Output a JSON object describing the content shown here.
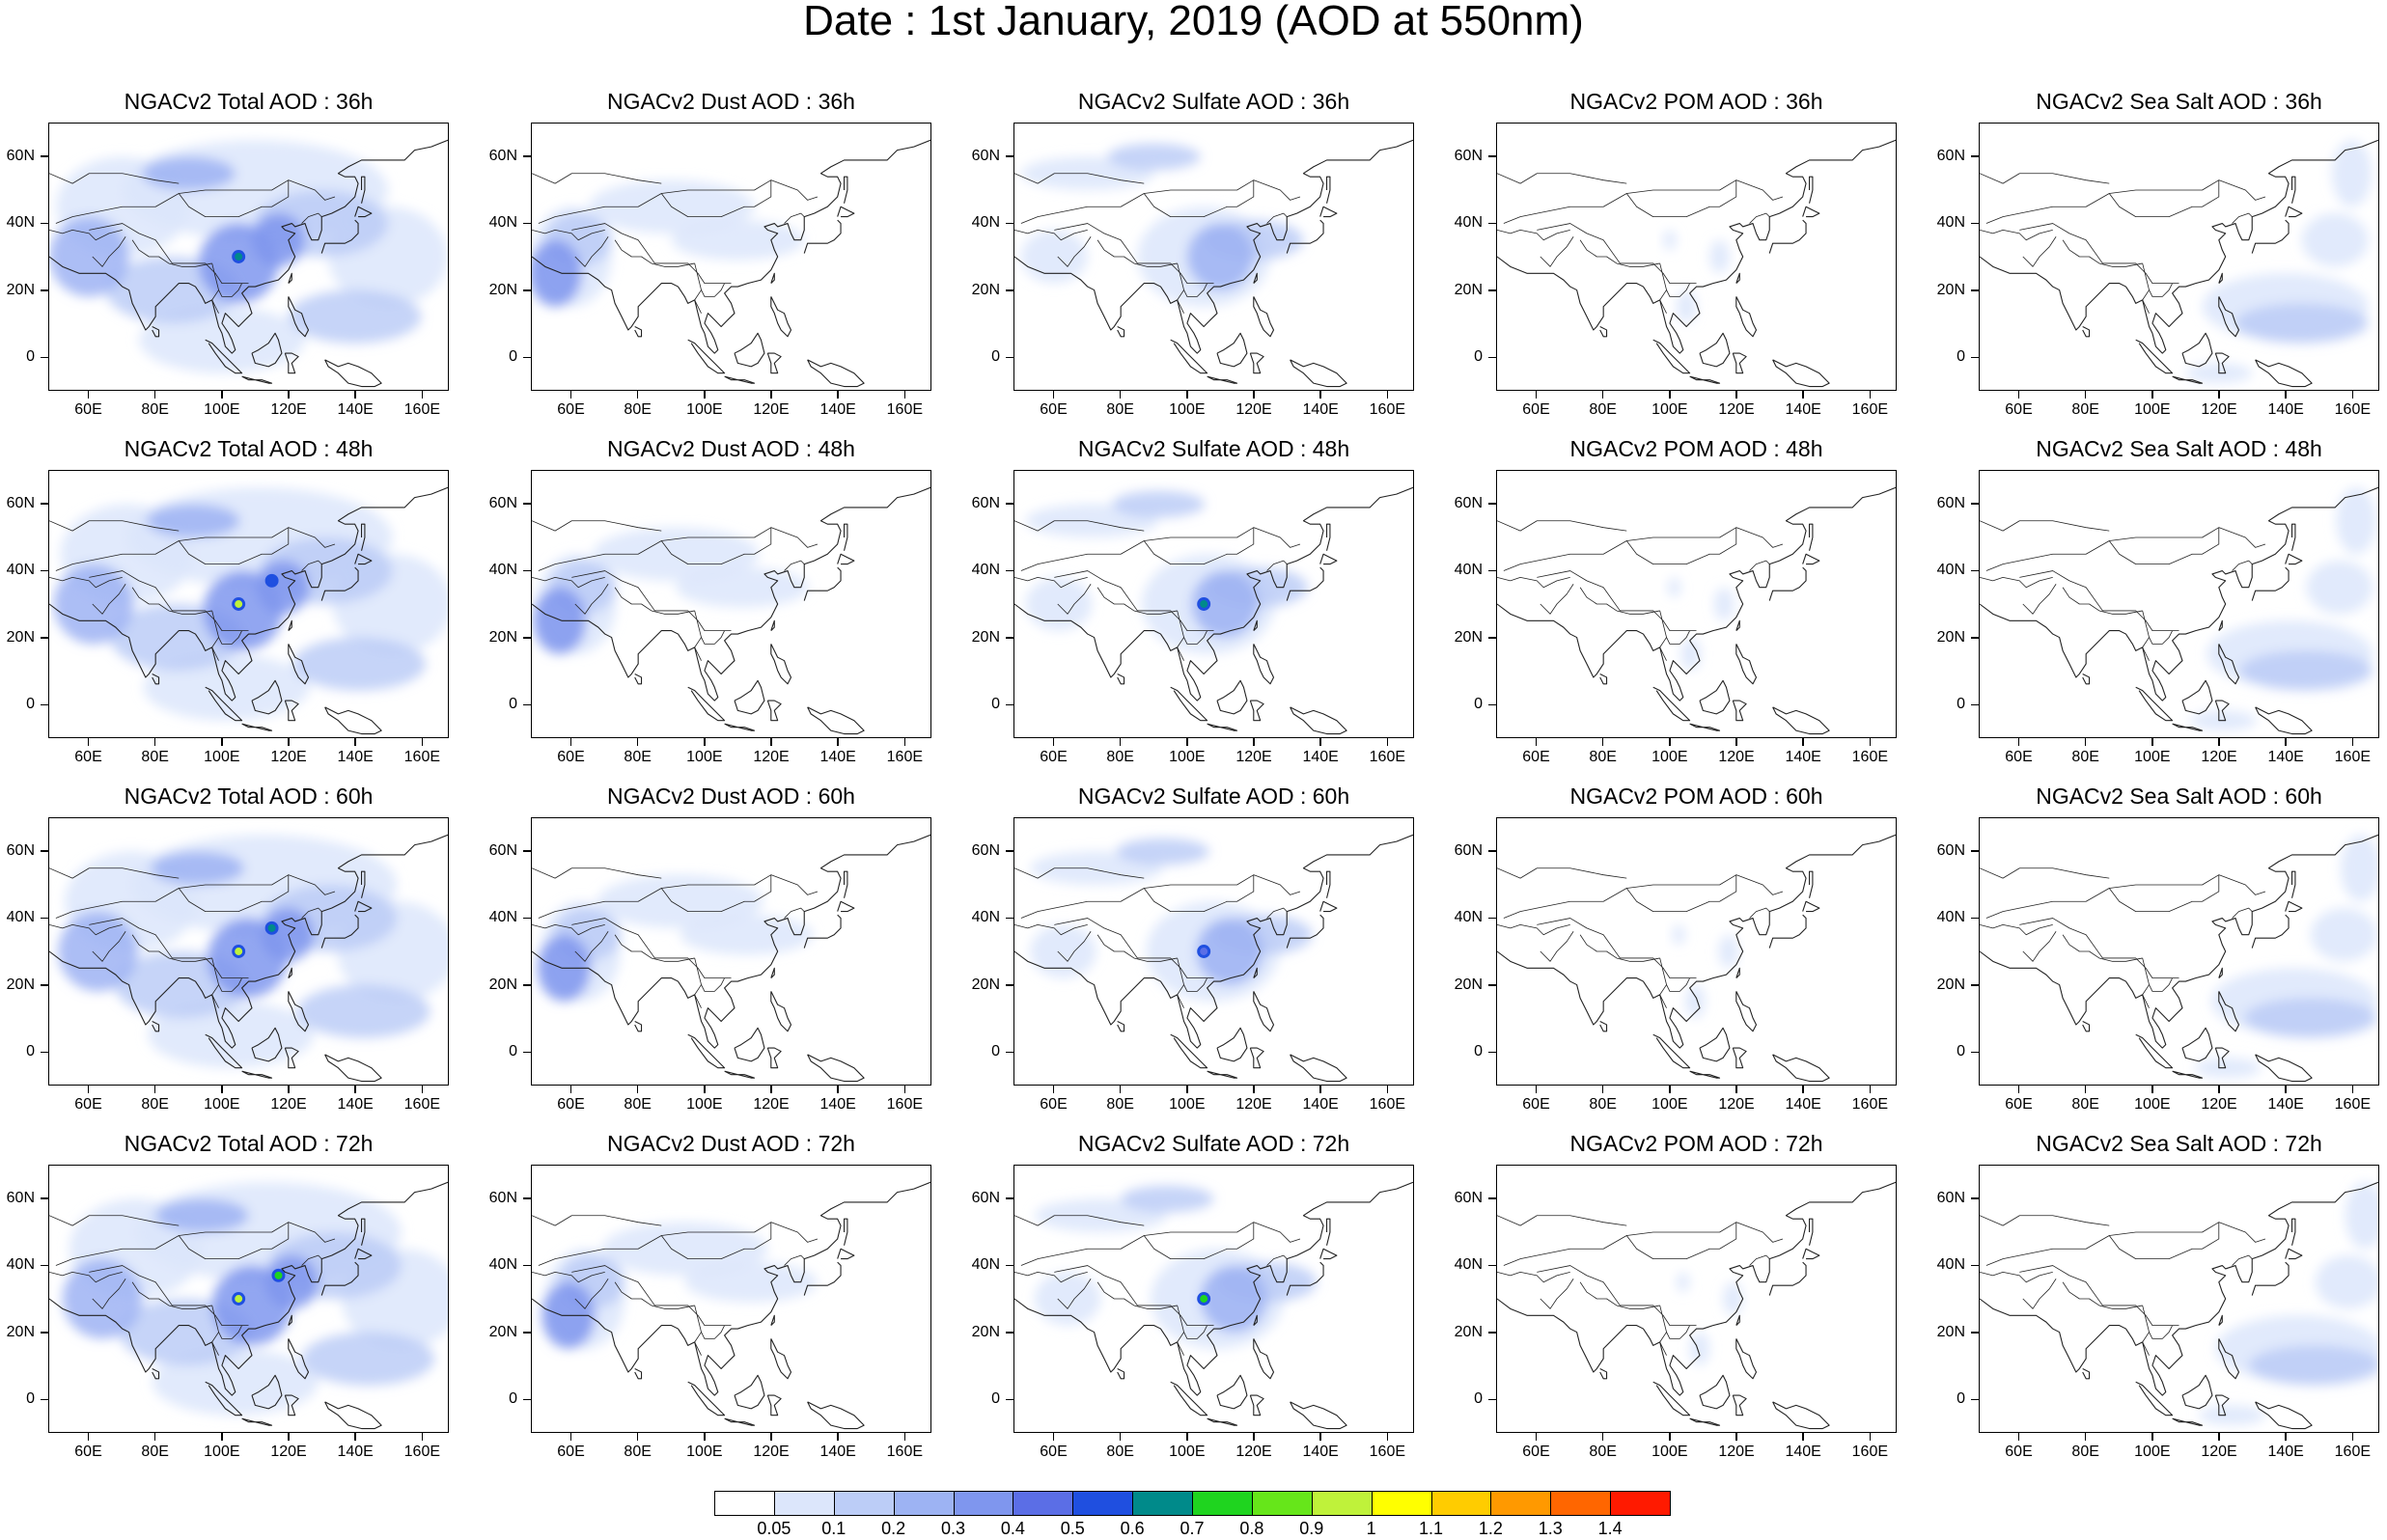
{
  "title": "Date : 1st January, 2019 (AOD at 550nm)",
  "map": {
    "lon_range": [
      48,
      168
    ],
    "lat_range": [
      -10,
      70
    ],
    "lon_ticks": [
      "60E",
      "80E",
      "100E",
      "120E",
      "140E",
      "160E"
    ],
    "lon_tick_values": [
      60,
      80,
      100,
      120,
      140,
      160
    ],
    "lat_ticks": [
      "60N",
      "40N",
      "20N",
      "0"
    ],
    "lat_tick_values": [
      60,
      40,
      20,
      0
    ]
  },
  "panels": [
    {
      "title": "NGACv2 Total AOD : 36h",
      "species": "total",
      "hour": 36
    },
    {
      "title": "NGACv2 Dust AOD : 36h",
      "species": "dust",
      "hour": 36
    },
    {
      "title": "NGACv2 Sulfate AOD : 36h",
      "species": "sulfate",
      "hour": 36
    },
    {
      "title": "NGACv2 POM AOD : 36h",
      "species": "pom",
      "hour": 36
    },
    {
      "title": "NGACv2 Sea Salt AOD : 36h",
      "species": "seasalt",
      "hour": 36
    },
    {
      "title": "NGACv2 Total AOD : 48h",
      "species": "total",
      "hour": 48
    },
    {
      "title": "NGACv2 Dust AOD : 48h",
      "species": "dust",
      "hour": 48
    },
    {
      "title": "NGACv2 Sulfate AOD : 48h",
      "species": "sulfate",
      "hour": 48
    },
    {
      "title": "NGACv2 POM AOD : 48h",
      "species": "pom",
      "hour": 48
    },
    {
      "title": "NGACv2 Sea Salt AOD : 48h",
      "species": "seasalt",
      "hour": 48
    },
    {
      "title": "NGACv2 Total AOD : 60h",
      "species": "total",
      "hour": 60
    },
    {
      "title": "NGACv2 Dust AOD : 60h",
      "species": "dust",
      "hour": 60
    },
    {
      "title": "NGACv2 Sulfate AOD : 60h",
      "species": "sulfate",
      "hour": 60
    },
    {
      "title": "NGACv2 POM AOD : 60h",
      "species": "pom",
      "hour": 60
    },
    {
      "title": "NGACv2 Sea Salt AOD : 60h",
      "species": "seasalt",
      "hour": 60
    },
    {
      "title": "NGACv2 Total AOD : 72h",
      "species": "total",
      "hour": 72
    },
    {
      "title": "NGACv2 Dust AOD : 72h",
      "species": "dust",
      "hour": 72
    },
    {
      "title": "NGACv2 Sulfate AOD : 72h",
      "species": "sulfate",
      "hour": 72
    },
    {
      "title": "NGACv2 POM AOD : 72h",
      "species": "pom",
      "hour": 72
    },
    {
      "title": "NGACv2 Sea Salt  AOD : 72h",
      "species": "seasalt",
      "hour": 72
    }
  ],
  "colorbar": {
    "labels": [
      "0.05",
      "0.1",
      "0.2",
      "0.3",
      "0.4",
      "0.5",
      "0.6",
      "0.7",
      "0.8",
      "0.9",
      "1",
      "1.1",
      "1.2",
      "1.3",
      "1.4"
    ],
    "colors": [
      "#ffffff",
      "#dce6fb",
      "#bccdf7",
      "#9db3f3",
      "#7f96ee",
      "#5b6ee6",
      "#1f4fe0",
      "#008a8a",
      "#1fd41f",
      "#66e61a",
      "#bff23a",
      "#ffff00",
      "#ffcc00",
      "#ff9900",
      "#ff6600",
      "#ff1a00"
    ]
  },
  "plumes": {
    "total": [
      {
        "lon": 105,
        "lat": 28,
        "rx": 12,
        "ry": 12,
        "level": 4
      },
      {
        "lon": 117,
        "lat": 35,
        "rx": 8,
        "ry": 8,
        "level": 4
      },
      {
        "lon": 90,
        "lat": 55,
        "rx": 14,
        "ry": 5,
        "level": 3
      },
      {
        "lon": 60,
        "lat": 30,
        "rx": 12,
        "ry": 12,
        "level": 3
      },
      {
        "lon": 140,
        "lat": 12,
        "rx": 20,
        "ry": 8,
        "level": 2
      },
      {
        "lon": 130,
        "lat": 40,
        "rx": 20,
        "ry": 10,
        "level": 2
      },
      {
        "lon": 85,
        "lat": 20,
        "rx": 20,
        "ry": 10,
        "level": 2
      },
      {
        "lon": 110,
        "lat": 50,
        "rx": 40,
        "ry": 15,
        "level": 1
      },
      {
        "lon": 70,
        "lat": 45,
        "rx": 20,
        "ry": 15,
        "level": 1
      },
      {
        "lon": 150,
        "lat": 30,
        "rx": 18,
        "ry": 15,
        "level": 1
      },
      {
        "lon": 100,
        "lat": 5,
        "rx": 25,
        "ry": 10,
        "level": 1
      }
    ],
    "dust": [
      {
        "lon": 55,
        "lat": 25,
        "rx": 8,
        "ry": 10,
        "level": 4
      },
      {
        "lon": 62,
        "lat": 35,
        "rx": 10,
        "ry": 8,
        "level": 2
      },
      {
        "lon": 90,
        "lat": 45,
        "rx": 25,
        "ry": 8,
        "level": 1
      },
      {
        "lon": 110,
        "lat": 35,
        "rx": 20,
        "ry": 6,
        "level": 1
      },
      {
        "lon": 60,
        "lat": 30,
        "rx": 12,
        "ry": 15,
        "level": 1
      }
    ],
    "sulfate": [
      {
        "lon": 110,
        "lat": 30,
        "rx": 10,
        "ry": 10,
        "level": 3
      },
      {
        "lon": 90,
        "lat": 60,
        "rx": 14,
        "ry": 4,
        "level": 2
      },
      {
        "lon": 120,
        "lat": 35,
        "rx": 15,
        "ry": 6,
        "level": 2
      },
      {
        "lon": 105,
        "lat": 30,
        "rx": 20,
        "ry": 15,
        "level": 1
      },
      {
        "lon": 70,
        "lat": 55,
        "rx": 20,
        "ry": 5,
        "level": 1
      },
      {
        "lon": 60,
        "lat": 30,
        "rx": 10,
        "ry": 8,
        "level": 1
      }
    ],
    "pom": [
      {
        "lon": 105,
        "lat": 15,
        "rx": 3,
        "ry": 5,
        "level": 1
      },
      {
        "lon": 115,
        "lat": 30,
        "rx": 3,
        "ry": 5,
        "level": 1
      },
      {
        "lon": 100,
        "lat": 35,
        "rx": 2,
        "ry": 3,
        "level": 1
      }
    ],
    "seasalt": [
      {
        "lon": 145,
        "lat": 10,
        "rx": 20,
        "ry": 6,
        "level": 2
      },
      {
        "lon": 140,
        "lat": 15,
        "rx": 25,
        "ry": 10,
        "level": 1
      },
      {
        "lon": 160,
        "lat": 55,
        "rx": 6,
        "ry": 10,
        "level": 1
      },
      {
        "lon": 155,
        "lat": 35,
        "rx": 10,
        "ry": 8,
        "level": 1
      },
      {
        "lon": 120,
        "lat": -5,
        "rx": 10,
        "ry": 3,
        "level": 1
      }
    ]
  },
  "hotspots": [
    {
      "species": "total",
      "hour": 36,
      "lon": 105,
      "lat": 30,
      "level": 7
    },
    {
      "species": "total",
      "hour": 48,
      "lon": 105,
      "lat": 30,
      "level": 10
    },
    {
      "species": "total",
      "hour": 48,
      "lon": 115,
      "lat": 37,
      "level": 6
    },
    {
      "species": "total",
      "hour": 60,
      "lon": 105,
      "lat": 30,
      "level": 10
    },
    {
      "species": "total",
      "hour": 60,
      "lon": 115,
      "lat": 37,
      "level": 7
    },
    {
      "species": "total",
      "hour": 72,
      "lon": 105,
      "lat": 30,
      "level": 10
    },
    {
      "species": "total",
      "hour": 72,
      "lon": 117,
      "lat": 37,
      "level": 8
    },
    {
      "species": "sulfate",
      "hour": 48,
      "lon": 105,
      "lat": 30,
      "level": 7
    },
    {
      "species": "sulfate",
      "hour": 60,
      "lon": 105,
      "lat": 30,
      "level": 5
    },
    {
      "species": "sulfate",
      "hour": 72,
      "lon": 105,
      "lat": 30,
      "level": 8
    }
  ]
}
